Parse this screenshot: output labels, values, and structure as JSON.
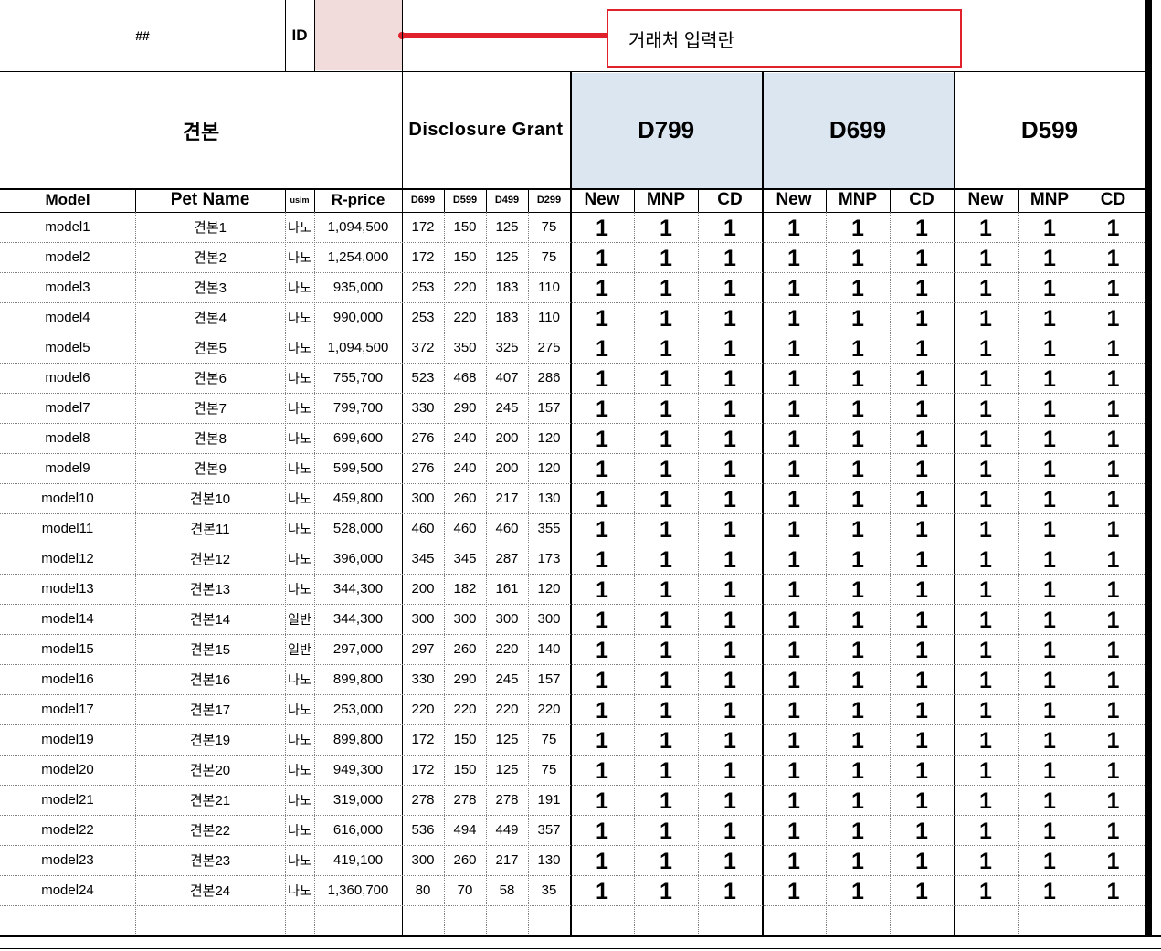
{
  "header": {
    "hash_label": "##",
    "id_label": "ID",
    "callout_text": "거래처 입력란"
  },
  "section_titles": {
    "sample": "견본",
    "disclosure_grant": "Disclosure Grant",
    "plans": [
      "D799",
      "D699",
      "D599"
    ]
  },
  "columns": {
    "model": "Model",
    "pet_name": "Pet Name",
    "usim": "usim",
    "r_price": "R-price",
    "grants": [
      "D699",
      "D599",
      "D499",
      "D299"
    ],
    "plan_subcolumns": [
      "New",
      "MNP",
      "CD"
    ]
  },
  "rows": [
    {
      "model": "model1",
      "pet": "견본1",
      "usim": "나노",
      "price": "1,094,500",
      "grants": [
        "172",
        "150",
        "125",
        "75"
      ]
    },
    {
      "model": "model2",
      "pet": "견본2",
      "usim": "나노",
      "price": "1,254,000",
      "grants": [
        "172",
        "150",
        "125",
        "75"
      ]
    },
    {
      "model": "model3",
      "pet": "견본3",
      "usim": "나노",
      "price": "935,000",
      "grants": [
        "253",
        "220",
        "183",
        "110"
      ]
    },
    {
      "model": "model4",
      "pet": "견본4",
      "usim": "나노",
      "price": "990,000",
      "grants": [
        "253",
        "220",
        "183",
        "110"
      ]
    },
    {
      "model": "model5",
      "pet": "견본5",
      "usim": "나노",
      "price": "1,094,500",
      "grants": [
        "372",
        "350",
        "325",
        "275"
      ]
    },
    {
      "model": "model6",
      "pet": "견본6",
      "usim": "나노",
      "price": "755,700",
      "grants": [
        "523",
        "468",
        "407",
        "286"
      ]
    },
    {
      "model": "model7",
      "pet": "견본7",
      "usim": "나노",
      "price": "799,700",
      "grants": [
        "330",
        "290",
        "245",
        "157"
      ]
    },
    {
      "model": "model8",
      "pet": "견본8",
      "usim": "나노",
      "price": "699,600",
      "grants": [
        "276",
        "240",
        "200",
        "120"
      ]
    },
    {
      "model": "model9",
      "pet": "견본9",
      "usim": "나노",
      "price": "599,500",
      "grants": [
        "276",
        "240",
        "200",
        "120"
      ]
    },
    {
      "model": "model10",
      "pet": "견본10",
      "usim": "나노",
      "price": "459,800",
      "grants": [
        "300",
        "260",
        "217",
        "130"
      ]
    },
    {
      "model": "model11",
      "pet": "견본11",
      "usim": "나노",
      "price": "528,000",
      "grants": [
        "460",
        "460",
        "460",
        "355"
      ]
    },
    {
      "model": "model12",
      "pet": "견본12",
      "usim": "나노",
      "price": "396,000",
      "grants": [
        "345",
        "345",
        "287",
        "173"
      ]
    },
    {
      "model": "model13",
      "pet": "견본13",
      "usim": "나노",
      "price": "344,300",
      "grants": [
        "200",
        "182",
        "161",
        "120"
      ]
    },
    {
      "model": "model14",
      "pet": "견본14",
      "usim": "일반",
      "price": "344,300",
      "grants": [
        "300",
        "300",
        "300",
        "300"
      ]
    },
    {
      "model": "model15",
      "pet": "견본15",
      "usim": "일반",
      "price": "297,000",
      "grants": [
        "297",
        "260",
        "220",
        "140"
      ]
    },
    {
      "model": "model16",
      "pet": "견본16",
      "usim": "나노",
      "price": "899,800",
      "grants": [
        "330",
        "290",
        "245",
        "157"
      ]
    },
    {
      "model": "model17",
      "pet": "견본17",
      "usim": "나노",
      "price": "253,000",
      "grants": [
        "220",
        "220",
        "220",
        "220"
      ]
    },
    {
      "model": "model19",
      "pet": "견본19",
      "usim": "나노",
      "price": "899,800",
      "grants": [
        "172",
        "150",
        "125",
        "75"
      ]
    },
    {
      "model": "model20",
      "pet": "견본20",
      "usim": "나노",
      "price": "949,300",
      "grants": [
        "172",
        "150",
        "125",
        "75"
      ]
    },
    {
      "model": "model21",
      "pet": "견본21",
      "usim": "나노",
      "price": "319,000",
      "grants": [
        "278",
        "278",
        "278",
        "191"
      ]
    },
    {
      "model": "model22",
      "pet": "견본22",
      "usim": "나노",
      "price": "616,000",
      "grants": [
        "536",
        "494",
        "449",
        "357"
      ]
    },
    {
      "model": "model23",
      "pet": "견본23",
      "usim": "나노",
      "price": "419,100",
      "grants": [
        "300",
        "260",
        "217",
        "130"
      ]
    },
    {
      "model": "model24",
      "pet": "견본24",
      "usim": "나노",
      "price": "1,360,700",
      "grants": [
        "80",
        "70",
        "58",
        "35"
      ]
    }
  ],
  "plan_cell_value": "1",
  "colors": {
    "id_input_fill": "#f2dcdb",
    "plan_header_fill": "#dce6f1",
    "callout_red": "#e0202a",
    "dotted_line": "#7f7f7f",
    "right_bar": "#000000"
  }
}
